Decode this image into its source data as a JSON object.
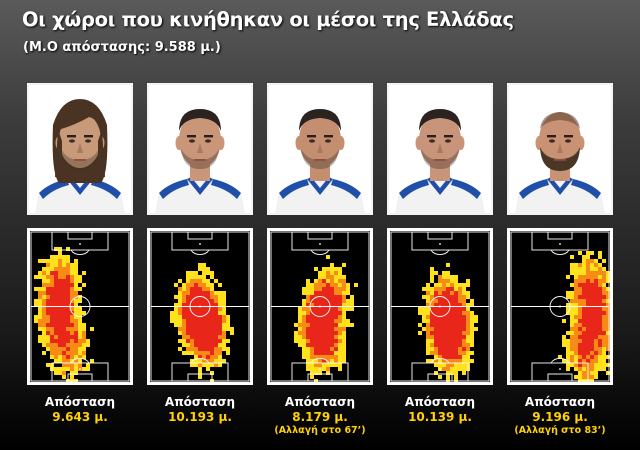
{
  "header": {
    "title": "Οι χώροι που κινήθηκαν οι μέσοι της Ελλάδας",
    "subtitle": "(Μ.Ο απόστασης: 9.588 μ.)"
  },
  "colors": {
    "kit_blue": "#1f4fa8",
    "kit_white": "#f2f2f2",
    "heat_red": "#e8261a",
    "heat_orange": "#f78b16",
    "heat_yellow": "#ffe21c",
    "distance_text": "#ffd200"
  },
  "players": [
    {
      "distance_label": "Απόσταση",
      "distance": "9.643 μ.",
      "note": "",
      "hair": "long",
      "beard": "stubble",
      "heat_zone": "left"
    },
    {
      "distance_label": "Απόσταση",
      "distance": "10.193 μ.",
      "note": "",
      "hair": "short",
      "beard": "stubble",
      "heat_zone": "center-left"
    },
    {
      "distance_label": "Απόσταση",
      "distance": "8.179 μ.",
      "note": "(Αλλαγή στο 67’)",
      "hair": "short",
      "beard": "stubble",
      "heat_zone": "center"
    },
    {
      "distance_label": "Απόσταση",
      "distance": "10.139 μ.",
      "note": "",
      "hair": "short",
      "beard": "stubble",
      "heat_zone": "center-right"
    },
    {
      "distance_label": "Απόσταση",
      "distance": "9.196 μ.",
      "note": "(Αλλαγή στο 83’)",
      "hair": "bald",
      "beard": "full",
      "heat_zone": "right"
    }
  ]
}
